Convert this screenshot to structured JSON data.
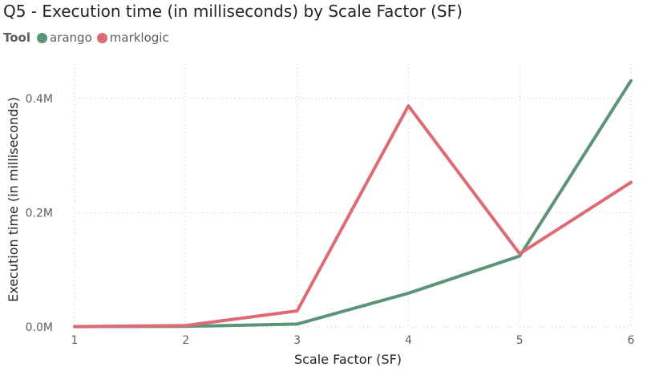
{
  "chart_data": {
    "type": "line",
    "title": "Q5 - Execution time (in milliseconds) by Scale Factor (SF)",
    "xlabel": "Scale Factor (SF)",
    "ylabel": "Execution time (in milliseconds)",
    "x": [
      1,
      2,
      3,
      4,
      5,
      6
    ],
    "ylim": [
      0,
      460000
    ],
    "yticks": [
      {
        "value": 0,
        "label": "0.0M"
      },
      {
        "value": 200000,
        "label": "0.2M"
      },
      {
        "value": 400000,
        "label": "0.4M"
      }
    ],
    "grid": true,
    "legend": {
      "title": "Tool",
      "placement": "top-left"
    },
    "series": [
      {
        "name": "arango",
        "color": "#5c9478",
        "values": [
          500,
          1000,
          5000,
          59000,
          124000,
          431000
        ]
      },
      {
        "name": "marklogic",
        "color": "#dd6b76",
        "values": [
          500,
          2500,
          28000,
          387000,
          128000,
          253000
        ]
      }
    ]
  }
}
